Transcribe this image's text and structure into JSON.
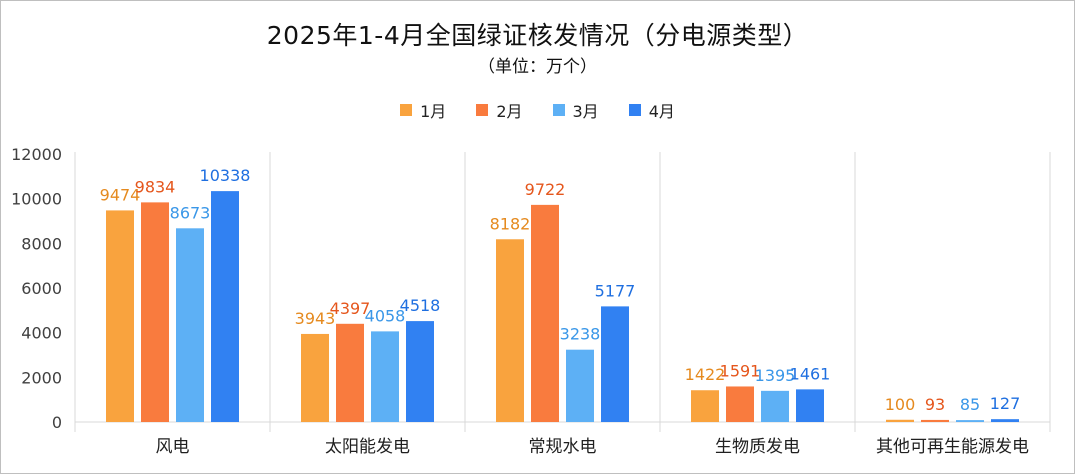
{
  "chart_data": {
    "type": "bar",
    "title": "2025年1-4月全国绿证核发情况（分电源类型）",
    "subtitle": "（单位：万个）",
    "categories": [
      "风电",
      "太阳能发电",
      "常规水电",
      "生物质发电",
      "其他可再生能源发电"
    ],
    "series": [
      {
        "name": "1月",
        "color": "#F9A33E",
        "values": [
          9474,
          3943,
          8182,
          1422,
          100
        ]
      },
      {
        "name": "2月",
        "color": "#F97B3E",
        "values": [
          9834,
          4397,
          9722,
          1591,
          93
        ]
      },
      {
        "name": "3月",
        "color": "#5DB0F5",
        "values": [
          8673,
          4058,
          3238,
          1395,
          85
        ]
      },
      {
        "name": "4月",
        "color": "#3181F2",
        "values": [
          10338,
          4518,
          5177,
          1461,
          127
        ]
      }
    ],
    "label_colors": [
      "#E58A1F",
      "#E5561C",
      "#3A97E8",
      "#1F6FE0"
    ],
    "ylim": [
      0,
      12000
    ],
    "yticks": [
      0,
      2000,
      4000,
      6000,
      8000,
      10000,
      12000
    ],
    "legend_position": "top",
    "grid": false
  }
}
